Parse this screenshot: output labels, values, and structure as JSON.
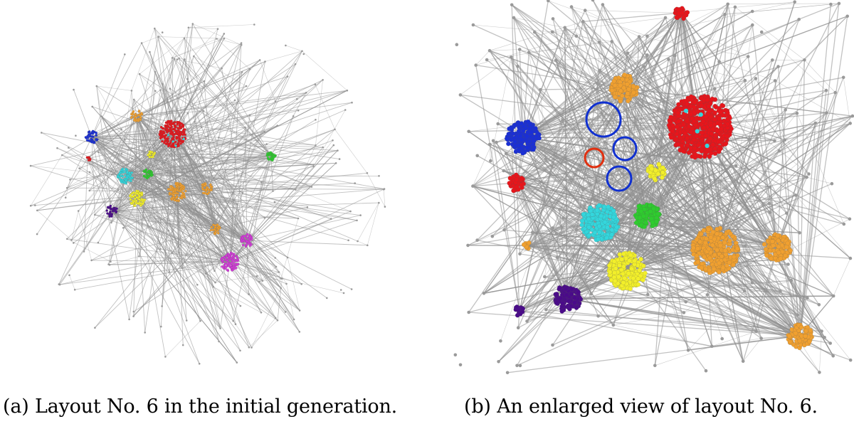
{
  "figure": {
    "panels": [
      {
        "id": "a",
        "caption": "(a) Layout No. 6 in the initial generation."
      },
      {
        "id": "b",
        "caption": "(b) An enlarged view of layout No. 6."
      }
    ]
  },
  "palette": {
    "edge": "#8f8f8f",
    "node": "#9a9a9a",
    "highlight_blue": "#1030d0",
    "highlight_red": "#e03010",
    "clusters": {
      "red": "#e8151b",
      "blue": "#1a2fd6",
      "cyan": "#33d6dc",
      "green": "#2ecc2e",
      "yellow": "#f2ef2a",
      "orange": "#f0a030",
      "purple": "#4a0a8a",
      "magenta": "#d23ad8"
    }
  }
}
